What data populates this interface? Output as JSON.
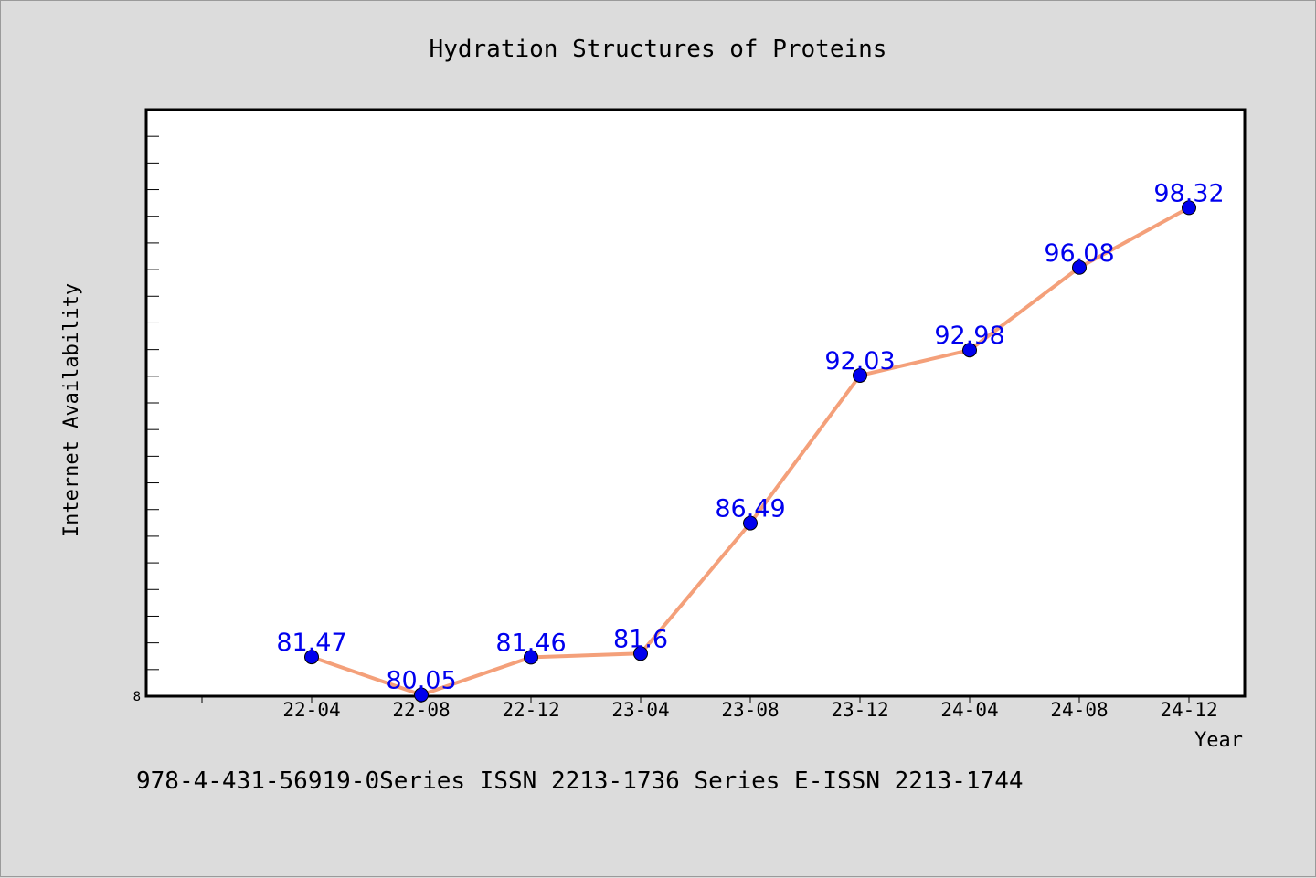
{
  "chart_data": {
    "type": "line",
    "title": "Hydration Structures of Proteins",
    "xlabel": "Year",
    "ylabel": "Internet Availability",
    "categories": [
      "22-04",
      "22-08",
      "22-12",
      "23-04",
      "23-08",
      "23-12",
      "24-04",
      "24-08",
      "24-12"
    ],
    "series": [
      {
        "name": "",
        "values": [
          81.47,
          80.05,
          81.46,
          81.6,
          86.49,
          92.03,
          92.98,
          96.08,
          98.32
        ],
        "labels": [
          "81.47",
          "80.05",
          "81.46",
          "81.6",
          "86.49",
          "92.03",
          "92.98",
          "96.08",
          "98.32"
        ]
      }
    ],
    "ylim": [
      80,
      102
    ],
    "y_tick_labels": [
      "8"
    ],
    "grid": false,
    "legend": "none",
    "colors": {
      "line": "#f4a07a",
      "marker": "#0000ee",
      "data_label": "#0000ee",
      "plot_background": "#ffffff",
      "page_background": "#dcdcdc"
    }
  },
  "footer": {
    "text": "978-4-431-56919-0Series ISSN 2213-1736 Series E-ISSN 2213-1744"
  }
}
